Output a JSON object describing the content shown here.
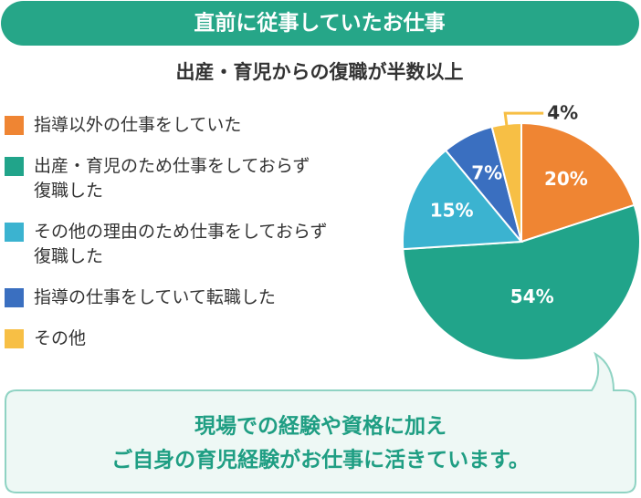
{
  "chart_data": {
    "type": "pie",
    "title": "直前に従事していたお仕事",
    "subtitle": "出産・育児からの復職が半数以上",
    "categories": [
      "指導以外の仕事をしていた",
      "出産・育児のため仕事をしておらず\n復職した",
      "その他の理由のため仕事をしておらず\n復職した",
      "指導の仕事をしていて転職した",
      "その他"
    ],
    "values": [
      20,
      54,
      15,
      7,
      4
    ],
    "value_labels": [
      "20%",
      "54%",
      "15%",
      "7%",
      "4%"
    ],
    "colors": [
      "#ef8533",
      "#21a48a",
      "#3bb3d0",
      "#3a6fc0",
      "#f7bf45"
    ],
    "callout": [
      "現場での経験や資格に加え",
      "ご自身の育児経験がお仕事に活きています。"
    ]
  }
}
